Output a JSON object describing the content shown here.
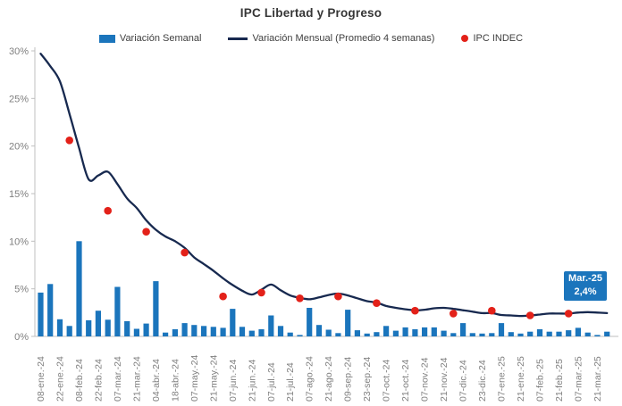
{
  "title": "IPC Libertad y Progreso",
  "legend": [
    {
      "label": "Variación Semanal",
      "type": "bar",
      "color": "#1B75BC"
    },
    {
      "label": "Variación Mensual (Promedio 4 semanas)",
      "type": "line",
      "color": "#17294F"
    },
    {
      "label": "IPC INDEC",
      "type": "dot",
      "color": "#E32119"
    }
  ],
  "callout": {
    "title": "Mar.-25",
    "value": "2,4%",
    "color": "#1B75BC"
  },
  "colors": {
    "bar": "#1B75BC",
    "line": "#17294F",
    "dot": "#E32119",
    "axis": "#BFBFBF",
    "tick_text": "#7F7F7F",
    "title_text": "#363636"
  },
  "chart_data": {
    "type": "combo (bar + line + scatter)",
    "title": "IPC Libertad y Progreso",
    "ylabel": "",
    "xlabel": "",
    "ylim": [
      0,
      30
    ],
    "ytick_step": 5,
    "yticks": [
      "0%",
      "5%",
      "10%",
      "15%",
      "20%",
      "25%",
      "30%"
    ],
    "grid": false,
    "x_labels_every_other_bar": true,
    "x_labels": [
      "08-ene.-24",
      "22-ene.-24",
      "08-feb.-24",
      "22-feb.-24",
      "07-mar.-24",
      "21-mar.-24",
      "04-abr.-24",
      "18-abr.-24",
      "07-may.-24",
      "21-may.-24",
      "07-jun.-24",
      "21-jun.-24",
      "07-jul.-24",
      "21-jul.-24",
      "07-ago.-24",
      "21-ago.-24",
      "09-sep.-24",
      "23-sep.-24",
      "07-oct.-24",
      "21-oct.-24",
      "07-nov.-24",
      "21-nov.-24",
      "07-dic.-24",
      "23-dic.-24",
      "07-ene.-25",
      "21-ene.-25",
      "07-feb.-25",
      "21-feb.-25",
      "07-mar.-25",
      "21-mar.-25"
    ],
    "series": [
      {
        "name": "Variación Semanal",
        "type": "bar",
        "unit": "%",
        "values": [
          4.6,
          5.5,
          1.8,
          1.1,
          10.0,
          1.7,
          2.7,
          1.75,
          5.2,
          1.6,
          0.8,
          1.35,
          5.8,
          0.4,
          0.75,
          1.4,
          1.2,
          1.1,
          1.0,
          0.9,
          2.9,
          1.0,
          0.6,
          0.75,
          2.2,
          1.1,
          0.4,
          0.15,
          3.0,
          1.2,
          0.7,
          0.35,
          2.8,
          0.65,
          0.3,
          0.45,
          1.1,
          0.6,
          0.95,
          0.75,
          0.95,
          0.95,
          0.6,
          0.35,
          1.4,
          0.35,
          0.3,
          0.35,
          1.4,
          0.45,
          0.3,
          0.5,
          0.75,
          0.5,
          0.5,
          0.65,
          0.9,
          0.4,
          0.15,
          0.5
        ]
      },
      {
        "name": "Variación Mensual (Promedio 4 semanas)",
        "type": "line",
        "unit": "%",
        "values": [
          29.7,
          28.4,
          26.8,
          23.4,
          19.8,
          16.5,
          16.9,
          17.3,
          16.0,
          14.5,
          13.5,
          12.2,
          11.2,
          10.5,
          10.0,
          9.3,
          8.3,
          7.6,
          6.9,
          6.1,
          5.4,
          4.8,
          4.4,
          4.9,
          5.45,
          4.85,
          4.3,
          4.05,
          3.9,
          4.1,
          4.35,
          4.5,
          4.3,
          4.0,
          3.7,
          3.55,
          3.2,
          3.0,
          2.85,
          2.75,
          2.8,
          2.95,
          3.0,
          2.9,
          2.75,
          2.6,
          2.45,
          2.45,
          2.25,
          2.2,
          2.15,
          2.2,
          2.3,
          2.4,
          2.4,
          2.4,
          2.5,
          2.55,
          2.5,
          2.45
        ]
      },
      {
        "name": "IPC INDEC",
        "type": "scatter",
        "unit": "%",
        "points": [
          {
            "bar_index": 3,
            "value": 20.6
          },
          {
            "bar_index": 7,
            "value": 13.2
          },
          {
            "bar_index": 11,
            "value": 11.0
          },
          {
            "bar_index": 15,
            "value": 8.8
          },
          {
            "bar_index": 19,
            "value": 4.2
          },
          {
            "bar_index": 23,
            "value": 4.6
          },
          {
            "bar_index": 27,
            "value": 4.0
          },
          {
            "bar_index": 31,
            "value": 4.2
          },
          {
            "bar_index": 35,
            "value": 3.5
          },
          {
            "bar_index": 39,
            "value": 2.7
          },
          {
            "bar_index": 43,
            "value": 2.4
          },
          {
            "bar_index": 47,
            "value": 2.7
          },
          {
            "bar_index": 51,
            "value": 2.2
          },
          {
            "bar_index": 55,
            "value": 2.4
          }
        ]
      }
    ],
    "annotation": {
      "label": "Mar.-25",
      "value": "2,4%"
    },
    "legend_position": "top"
  }
}
